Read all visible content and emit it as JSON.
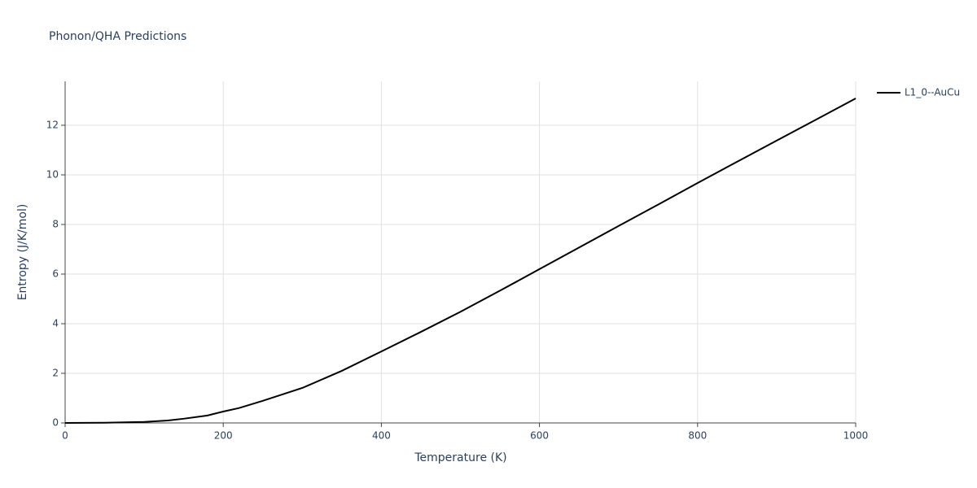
{
  "chart_data": {
    "type": "line",
    "title": "Phonon/QHA Predictions",
    "x_label": "Temperature (K)",
    "y_label": "Entropy (J/K/mol)",
    "x": [
      0,
      50,
      100,
      130,
      150,
      180,
      200,
      220,
      250,
      300,
      350,
      400,
      450,
      500,
      550,
      600,
      650,
      700,
      750,
      800,
      850,
      900,
      950,
      1000
    ],
    "series": [
      {
        "name": "L1_0--AuCu",
        "color": "#000000",
        "values": [
          0,
          0.01,
          0.04,
          0.1,
          0.17,
          0.3,
          0.46,
          0.6,
          0.89,
          1.41,
          2.1,
          2.88,
          3.67,
          4.48,
          5.33,
          6.2,
          7.07,
          7.94,
          8.8,
          9.67,
          10.53,
          11.38,
          12.23,
          13.08
        ]
      }
    ],
    "xlim": [
      0,
      1000
    ],
    "xticks": [
      0,
      200,
      400,
      600,
      800,
      1000
    ],
    "ylim": [
      0,
      13.77
    ],
    "yticks": [
      0,
      2,
      4,
      6,
      8,
      10,
      12
    ],
    "grid": true,
    "legend": "right"
  }
}
